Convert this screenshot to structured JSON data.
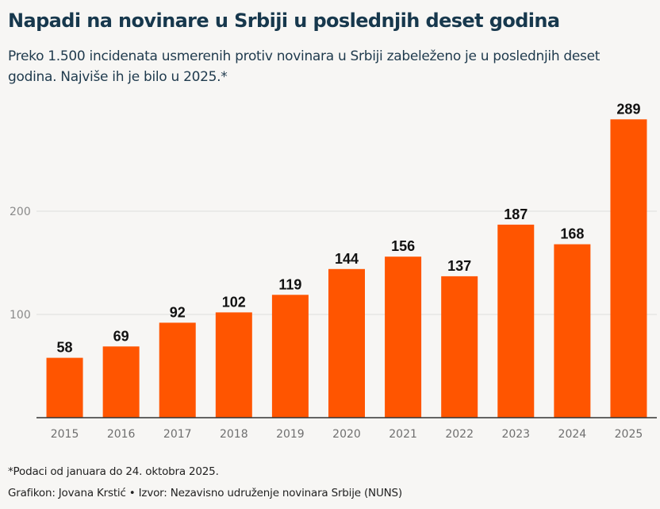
{
  "header": {
    "title": "Napadi na novinare u Srbiji u poslednjih deset godina",
    "subtitle": "Preko 1.500 incidenata usmerenih protiv novinara u Srbiji zabeleženo je u poslednjih deset godina. Najviše ih je bilo u 2025.*"
  },
  "footer": {
    "note": "*Podaci od januara do 24. oktobra 2025.",
    "credit": "Grafikon: Jovana Krstić • Izvor: Nezavisno udruženje novinara Srbije (NUNS)"
  },
  "colors": {
    "bar": "#ff5500",
    "title": "#17384d",
    "grid": "#dddddd",
    "axis": "#333333"
  },
  "chart_data": {
    "type": "bar",
    "title": "Napadi na novinare u Srbiji u poslednjih deset godina",
    "xlabel": "",
    "ylabel": "",
    "categories": [
      "2015",
      "2016",
      "2017",
      "2018",
      "2019",
      "2020",
      "2021",
      "2022",
      "2023",
      "2024",
      "2025"
    ],
    "values": [
      58,
      69,
      92,
      102,
      119,
      144,
      156,
      137,
      187,
      168,
      289
    ],
    "ylim": [
      0,
      300
    ],
    "yticks": [
      100,
      200
    ],
    "grid": true,
    "legend": "none",
    "data_labels": true
  }
}
